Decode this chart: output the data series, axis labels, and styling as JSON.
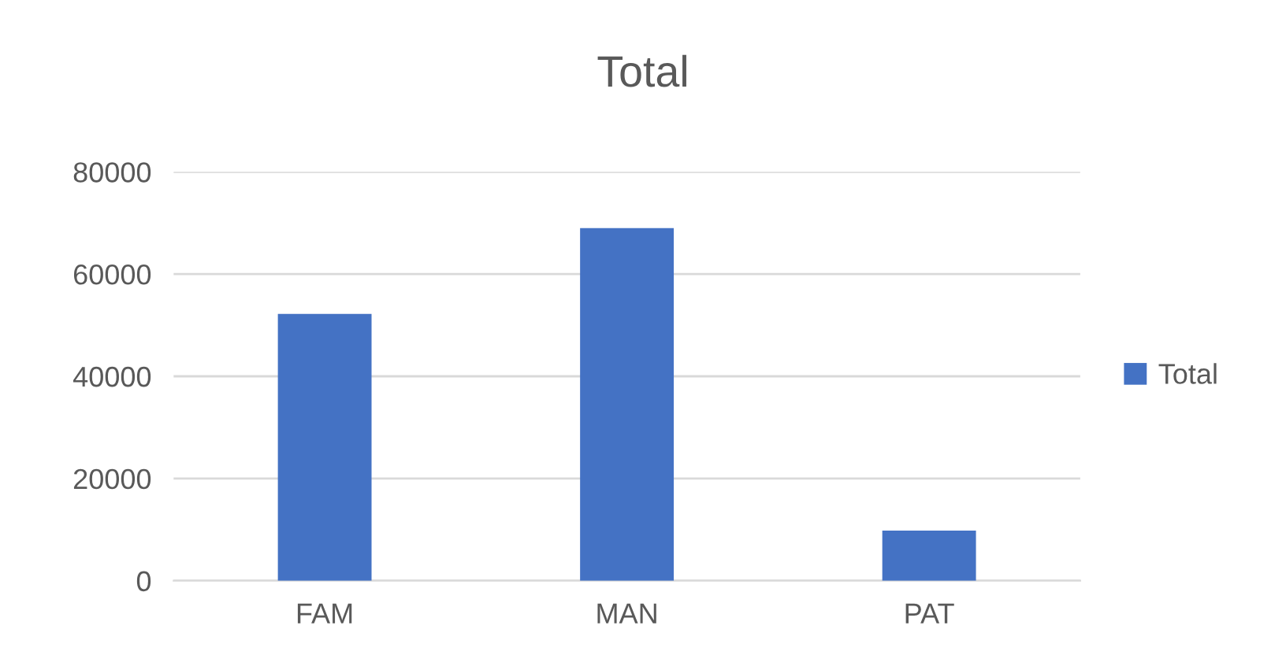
{
  "chart_data": {
    "type": "bar",
    "title": "Total",
    "categories": [
      "FAM",
      "MAN",
      "PAT"
    ],
    "series": [
      {
        "name": "Total",
        "color": "#4472c4",
        "values": [
          52200,
          69000,
          9800
        ]
      }
    ],
    "ylim": [
      0,
      80000
    ],
    "yticks": [
      0,
      20000,
      40000,
      60000,
      80000
    ],
    "grid": "y",
    "legend": "right"
  }
}
